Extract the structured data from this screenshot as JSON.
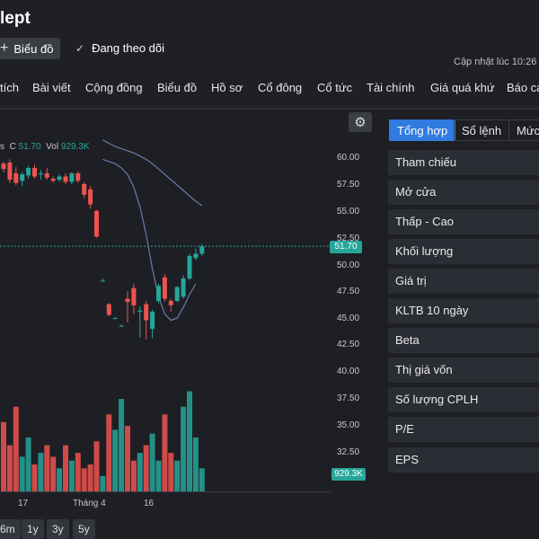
{
  "header": {
    "title": "lept",
    "chart_button": "Biểu đồ",
    "follow_label": "Đang theo dõi",
    "updated": "Cập nhật lúc  10:26"
  },
  "tabs": [
    "tích",
    "Bài viết",
    "Cộng đồng",
    "Biểu đồ",
    "Hồ sơ",
    "Cổ đông",
    "Cổ tức",
    "Tài chính",
    "Giá quá khứ",
    "Báo cá"
  ],
  "chart": {
    "legend": {
      "prefix": "s",
      "c_label": "C",
      "c_value": "51.70",
      "vol_label": "Vol",
      "vol_value": "929.3K"
    },
    "yticks": [
      "60.00",
      "57.50",
      "55.00",
      "52.50",
      "50.00",
      "47.50",
      "45.00",
      "42.50",
      "40.00",
      "37.50",
      "35.00",
      "32.50"
    ],
    "last_price": "51.70",
    "last_volume": "929.3K",
    "xticks": [
      "17",
      "Tháng 4",
      "16"
    ],
    "ranges": [
      "6m",
      "1y",
      "3y",
      "5y"
    ],
    "up_color": "#26a69a",
    "down_color": "#ef5350",
    "ma_color": "#6f78a8"
  },
  "chart_data": {
    "type": "candlestick",
    "price_axis": [
      42.5,
      60
    ],
    "last_price": 51.7,
    "candles": [
      {
        "o": 59.4,
        "h": 59.6,
        "l": 58.6,
        "c": 58.9
      },
      {
        "o": 59.5,
        "h": 59.8,
        "l": 57.6,
        "c": 57.9
      },
      {
        "o": 58.5,
        "h": 59.1,
        "l": 57.4,
        "c": 57.6
      },
      {
        "o": 57.8,
        "h": 58.6,
        "l": 57.3,
        "c": 58.4
      },
      {
        "o": 58.3,
        "h": 59.2,
        "l": 58.0,
        "c": 59.0
      },
      {
        "o": 59.0,
        "h": 59.3,
        "l": 58.0,
        "c": 58.2
      },
      {
        "o": 58.4,
        "h": 58.8,
        "l": 57.9,
        "c": 58.5
      },
      {
        "o": 58.5,
        "h": 59.0,
        "l": 57.9,
        "c": 58.1
      },
      {
        "o": 58.0,
        "h": 58.2,
        "l": 57.6,
        "c": 57.8
      },
      {
        "o": 57.9,
        "h": 58.4,
        "l": 57.7,
        "c": 58.2
      },
      {
        "o": 58.2,
        "h": 58.5,
        "l": 57.5,
        "c": 57.7
      },
      {
        "o": 57.7,
        "h": 58.6,
        "l": 57.5,
        "c": 58.5
      },
      {
        "o": 58.5,
        "h": 58.7,
        "l": 57.6,
        "c": 57.8
      },
      {
        "o": 57.5,
        "h": 57.7,
        "l": 56.2,
        "c": 56.5
      },
      {
        "o": 57.0,
        "h": 57.3,
        "l": 55.2,
        "c": 55.6
      },
      {
        "o": 55.0,
        "h": 55.1,
        "l": 52.5,
        "c": 52.6
      },
      {
        "o": 48.5,
        "h": 48.7,
        "l": 48.4,
        "c": 48.5
      },
      {
        "o": 46.3,
        "h": 46.4,
        "l": 45.2,
        "c": 45.3
      },
      {
        "o": 45.0,
        "h": 45.1,
        "l": 45.0,
        "c": 45.0
      },
      {
        "o": 44.3,
        "h": 44.4,
        "l": 44.2,
        "c": 44.3
      },
      {
        "o": 46.8,
        "h": 47.5,
        "l": 44.6,
        "c": 46.5
      },
      {
        "o": 47.8,
        "h": 48.2,
        "l": 45.4,
        "c": 46.2
      },
      {
        "o": 45.6,
        "h": 46.1,
        "l": 43.2,
        "c": 45.7
      },
      {
        "o": 46.3,
        "h": 46.6,
        "l": 43.0,
        "c": 44.8
      },
      {
        "o": 44.0,
        "h": 45.8,
        "l": 43.1,
        "c": 45.6
      },
      {
        "o": 46.6,
        "h": 48.2,
        "l": 46.4,
        "c": 48.0
      },
      {
        "o": 48.8,
        "h": 49.1,
        "l": 46.5,
        "c": 46.8
      },
      {
        "o": 46.6,
        "h": 46.8,
        "l": 45.6,
        "c": 46.2
      },
      {
        "o": 46.6,
        "h": 48.0,
        "l": 46.5,
        "c": 47.9
      },
      {
        "o": 47.0,
        "h": 49.0,
        "l": 46.8,
        "c": 48.7
      },
      {
        "o": 48.7,
        "h": 51.0,
        "l": 48.5,
        "c": 50.8
      },
      {
        "o": 50.6,
        "h": 51.5,
        "l": 50.4,
        "c": 51.0
      },
      {
        "o": 51.0,
        "h": 51.9,
        "l": 50.8,
        "c": 51.7
      }
    ],
    "ma_long": [
      61.6,
      61.3,
      61.0,
      60.8,
      60.6,
      60.4,
      60.1,
      59.8,
      59.4,
      58.9,
      58.4,
      57.9,
      57.4,
      56.9,
      56.4,
      55.9,
      55.5
    ],
    "ma_short": [
      59.8,
      59.6,
      59.4,
      59.0,
      58.4,
      57.2,
      55.4,
      52.8,
      49.6,
      47.0,
      45.4,
      44.8,
      45.0,
      46.0,
      47.2,
      48.2
    ],
    "volumes": [
      18,
      12,
      22,
      9,
      14,
      7,
      10,
      12,
      9,
      6,
      12,
      8,
      10,
      6,
      7,
      13,
      4,
      20,
      16,
      24,
      17,
      8,
      10,
      12,
      15,
      8,
      20,
      10,
      8,
      22,
      26,
      14,
      6
    ],
    "xlabels": [
      "17",
      "Tháng 4",
      "16"
    ]
  },
  "panel": {
    "tabs": [
      "Tổng hợp",
      "Sổ lệnh",
      "Mức"
    ],
    "rows": [
      "Tham chiếu",
      "Mở cửa",
      "Thấp - Cao",
      "Khối lượng",
      "Giá trị",
      "KLTB 10 ngày",
      "Beta",
      "Thị giá vốn",
      "Số lượng CPLH",
      "P/E",
      "EPS"
    ]
  }
}
